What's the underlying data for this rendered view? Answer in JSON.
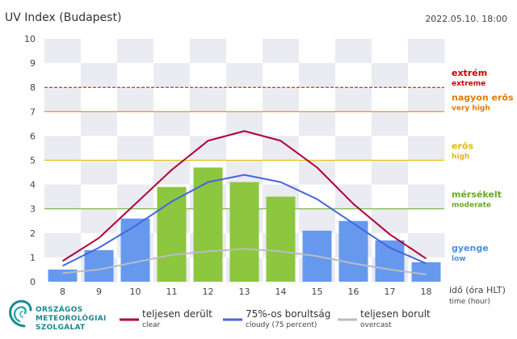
{
  "title": "UV Index (Budapest)",
  "datetime": "2022.05.10. 18:00",
  "colors": {
    "bar_green": "#8dc63f",
    "bar_blue": "#6699ee",
    "clear_line": "#b0003a",
    "cloudy_line": "#4466dd",
    "overcast_line": "#b8bcc4",
    "extreme": "#cc0000",
    "very_high": "#e07b00",
    "high": "#e6b800",
    "moderate": "#66aa22",
    "low": "#4a90d9",
    "logo": "#1a8a92"
  },
  "levels": [
    {
      "value": 8,
      "name": "extrém",
      "sub": "extreme",
      "color": "#cc0000"
    },
    {
      "value": 7,
      "name": "nagyon erős",
      "sub": "very high",
      "color": "#e07b00"
    },
    {
      "value": 5,
      "name": "erős",
      "sub": "high",
      "color": "#e6b800"
    },
    {
      "value": 3,
      "name": "mérsékelt",
      "sub": "moderate",
      "color": "#66aa22"
    },
    {
      "value": 0.8,
      "name": "gyenge",
      "sub": "low",
      "color": "#4a90d9"
    }
  ],
  "x_axis": {
    "label": "idő (óra HLT)",
    "sublabel": "time (hour)"
  },
  "legend": [
    {
      "key": "clear",
      "name": "teljesen derült",
      "sub": "clear",
      "color": "#b0003a"
    },
    {
      "key": "cloudy",
      "name": "75%-os borultság",
      "sub": "cloudy (75 percent)",
      "color": "#4466dd"
    },
    {
      "key": "overcast",
      "name": "teljesen borult",
      "sub": "overcast",
      "color": "#b8bcc4"
    }
  ],
  "logo": {
    "lines": [
      "ORSZÁGOS",
      "METEOROLÓGIAI",
      "SZOLGÁLAT"
    ]
  },
  "chart_data": {
    "type": "bar",
    "title": "UV Index (Budapest)",
    "xlabel": "idő (óra HLT)",
    "ylabel": "",
    "ylim": [
      0,
      10
    ],
    "yticks": [
      0,
      1,
      2,
      3,
      4,
      5,
      6,
      7,
      8,
      9,
      10
    ],
    "categories": [
      "8",
      "9",
      "10",
      "11",
      "12",
      "13",
      "14",
      "15",
      "16",
      "17",
      "18"
    ],
    "series": [
      {
        "name": "UV index",
        "type": "bar",
        "values": [
          0.5,
          1.3,
          2.6,
          3.9,
          4.7,
          4.1,
          3.5,
          2.1,
          2.5,
          1.7,
          0.8
        ],
        "colors": [
          "#6699ee",
          "#6699ee",
          "#6699ee",
          "#8dc63f",
          "#8dc63f",
          "#8dc63f",
          "#8dc63f",
          "#6699ee",
          "#6699ee",
          "#6699ee",
          "#6699ee"
        ]
      },
      {
        "name": "teljesen derült",
        "type": "line",
        "values": [
          0.85,
          1.8,
          3.2,
          4.6,
          5.8,
          6.2,
          5.8,
          4.7,
          3.2,
          1.95,
          0.95
        ],
        "color": "#b0003a"
      },
      {
        "name": "75%-os borultság",
        "type": "line",
        "values": [
          0.65,
          1.4,
          2.3,
          3.3,
          4.1,
          4.4,
          4.1,
          3.4,
          2.4,
          1.4,
          0.75
        ],
        "color": "#4466dd"
      },
      {
        "name": "teljesen borult",
        "type": "line",
        "values": [
          0.35,
          0.5,
          0.8,
          1.1,
          1.25,
          1.35,
          1.25,
          1.05,
          0.75,
          0.5,
          0.3
        ],
        "color": "#b8bcc4"
      }
    ],
    "reference_lines": [
      8,
      7,
      5,
      3
    ],
    "grid": false,
    "legend_position": "bottom"
  }
}
